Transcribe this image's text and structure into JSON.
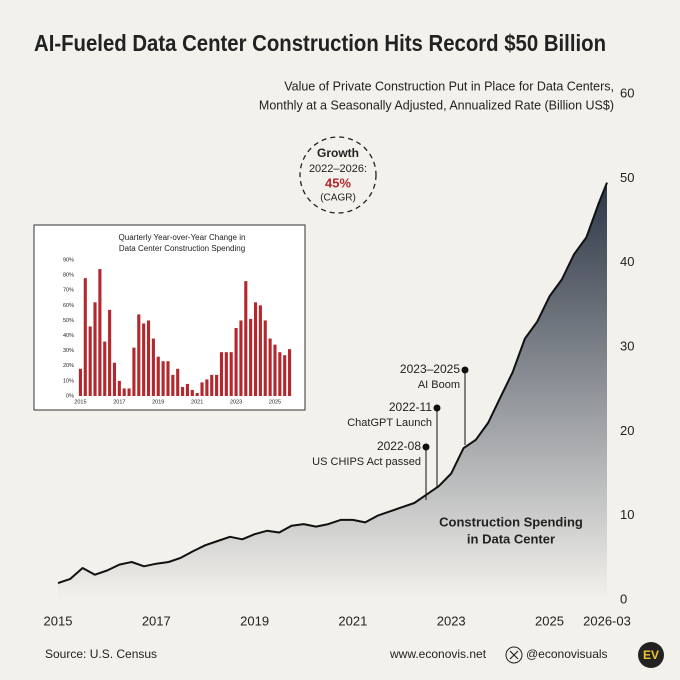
{
  "chart_data": [
    {
      "type": "area",
      "title": "AI-Fueled Data Center Construction Hits Record $50 Billion",
      "subtitle": [
        "Value of Private Construction Put in Place for Data Centers,",
        "Monthly at a Seasonally Adjusted, Annualized Rate (Billion US$)"
      ],
      "x": [
        2015,
        2015.25,
        2015.5,
        2015.75,
        2016,
        2016.25,
        2016.5,
        2016.75,
        2017,
        2017.25,
        2017.5,
        2017.75,
        2018,
        2018.25,
        2018.5,
        2018.75,
        2019,
        2019.25,
        2019.5,
        2019.75,
        2020,
        2020.25,
        2020.5,
        2020.75,
        2021,
        2021.25,
        2021.5,
        2021.75,
        2022,
        2022.25,
        2022.5,
        2022.75,
        2023,
        2023.25,
        2023.5,
        2023.75,
        2024,
        2024.25,
        2024.5,
        2024.75,
        2025,
        2025.25,
        2025.5,
        2025.75,
        2026,
        2026.17
      ],
      "values": [
        2.0,
        2.5,
        3.8,
        3.0,
        3.5,
        4.2,
        4.5,
        4.0,
        4.3,
        4.5,
        5.0,
        5.8,
        6.5,
        7.0,
        7.5,
        7.2,
        7.8,
        8.2,
        8.0,
        8.8,
        9.0,
        8.7,
        9.0,
        9.5,
        9.5,
        9.2,
        10.0,
        10.5,
        11.0,
        11.5,
        12.5,
        13.5,
        15.0,
        18.0,
        19.0,
        21.0,
        24.0,
        27.0,
        31.0,
        33.0,
        36.0,
        38.0,
        41.0,
        43.0,
        47.0,
        49.5
      ],
      "xlim": [
        2015,
        2026.17
      ],
      "xticks": [
        2015,
        2017,
        2019,
        2021,
        2023,
        2025,
        {
          "value": 2026.17,
          "label": "2026-03"
        }
      ],
      "ylim": [
        0,
        60
      ],
      "yticks": [
        0,
        10,
        20,
        30,
        40,
        50,
        60
      ],
      "line_color": "#111111",
      "area_color": "#2b3545",
      "series_label": [
        "Construction Spending",
        "in Data Center"
      ],
      "annotations": [
        {
          "label": "2023–2025",
          "text": "AI Boom"
        },
        {
          "label": "2022-11",
          "text": "ChatGPT Launch"
        },
        {
          "label": "2022-08",
          "text": "US CHIPS Act passed"
        }
      ],
      "growth_box": {
        "title": "Growth",
        "period": "2022–2026:",
        "value": "45%",
        "note": "(CAGR)"
      }
    },
    {
      "type": "bar",
      "title": [
        "Quarterly Year-over-Year Change in",
        "Data Center Construction Spending"
      ],
      "categories": [
        "2015",
        null,
        null,
        null,
        null,
        null,
        null,
        null,
        "2017",
        null,
        null,
        null,
        null,
        null,
        null,
        null,
        "2019",
        null,
        null,
        null,
        null,
        null,
        null,
        null,
        "2021",
        null,
        null,
        null,
        null,
        null,
        null,
        null,
        "2023",
        null,
        null,
        null,
        null,
        null,
        null,
        null,
        "2025",
        null,
        null,
        null
      ],
      "values": [
        18,
        78,
        46,
        62,
        84,
        36,
        57,
        22,
        10,
        5,
        5,
        32,
        54,
        48,
        50,
        38,
        26,
        23,
        23,
        14,
        18,
        6,
        8,
        4,
        2,
        9,
        11,
        14,
        14,
        29,
        29,
        29,
        45,
        50,
        76,
        51,
        62,
        60,
        50,
        38,
        34,
        29,
        27,
        31
      ],
      "ylim": [
        0,
        90
      ],
      "yticks": [
        {
          "value": 0,
          "label": "0%"
        },
        {
          "value": 10,
          "label": "10%"
        },
        {
          "value": 20,
          "label": "20%"
        },
        {
          "value": 30,
          "label": "30%"
        },
        {
          "value": 40,
          "label": "40%"
        },
        {
          "value": 50,
          "label": "50%"
        },
        {
          "value": 60,
          "label": "60%"
        },
        {
          "value": 70,
          "label": "70%"
        },
        {
          "value": 80,
          "label": "80%"
        },
        {
          "value": 90,
          "label": "90%"
        }
      ],
      "color": "#b3282d"
    }
  ],
  "footer": {
    "source": "Source: U.S. Census",
    "website": "www.econovis.net",
    "handle": "@econovisuals",
    "logo": "EV"
  }
}
